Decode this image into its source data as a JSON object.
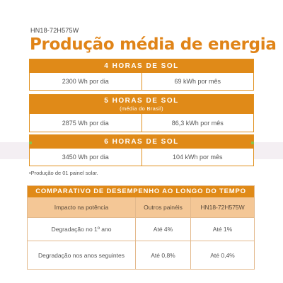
{
  "model": "HN18-72H575W",
  "title": "Produção média de energia",
  "blocks": [
    {
      "header": "4 HORAS DE SOL",
      "subheader": "",
      "daily": "2300 Wh por dia",
      "monthly": "69 kWh por mês"
    },
    {
      "header": "5 HORAS DE SOL",
      "subheader": "(média do Brasil)",
      "daily": "2875 Wh por dia",
      "monthly": "86,3 kWh por mês"
    },
    {
      "header": "6 HORAS DE SOL",
      "subheader": "",
      "daily": "3450 Wh por dia",
      "monthly": "104 kWh por mês"
    }
  ],
  "note": "•Produção de 01 painel solar.",
  "comparison": {
    "title": "COMPARATIVO DE DESEMPENHO AO LONGO DO TEMPO",
    "headers": [
      "Impacto na potência",
      "Outros painéis",
      "HN18-72H575W"
    ],
    "rows": [
      [
        "Degradação no 1º ano",
        "Até 4%",
        "Até 1%"
      ],
      [
        "Degradação nos anos seguintes",
        "Até 0,8%",
        "Até 0,4%"
      ]
    ]
  },
  "colors": {
    "accent": "#e08a18",
    "header_fill": "#f4c796"
  }
}
